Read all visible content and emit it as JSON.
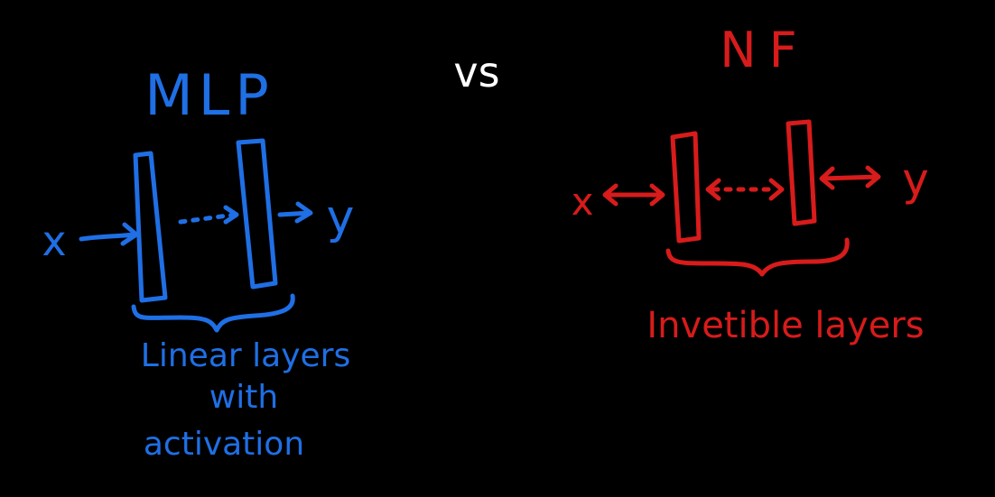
{
  "colors": {
    "background": "#000000",
    "mlp": "#1f6fe5",
    "nf": "#d81b1b",
    "vs": "#ffffff"
  },
  "mlp": {
    "title": "MLP",
    "input_label": "x",
    "output_label": "y",
    "caption_lines": [
      "Linear layers",
      "with",
      "activation"
    ]
  },
  "vs_label": "vs",
  "nf": {
    "title": "NF",
    "input_label": "x",
    "output_label": "y",
    "caption": "Invetible layers"
  }
}
